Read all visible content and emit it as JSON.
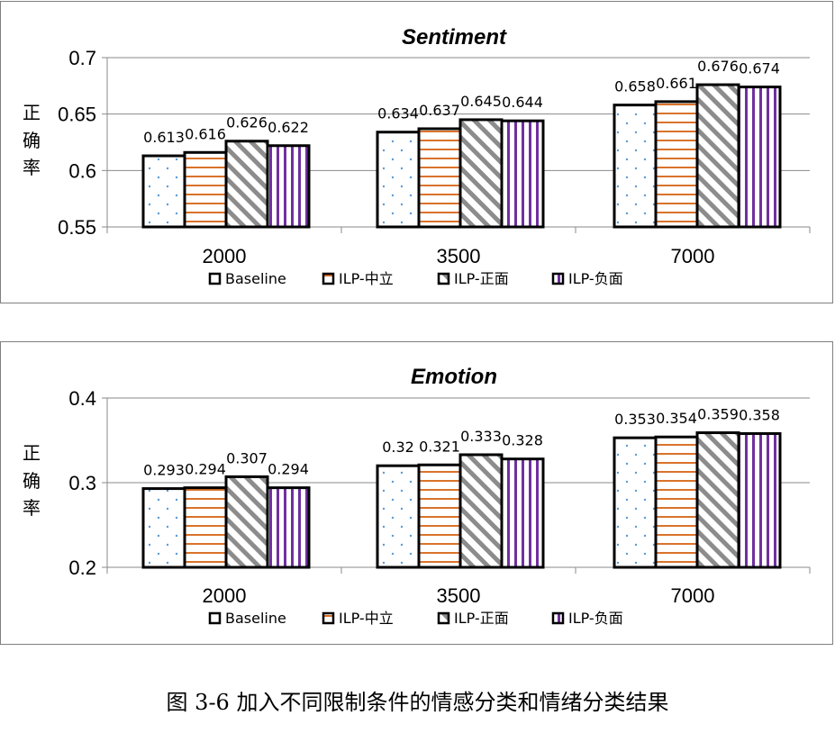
{
  "chart_data": [
    {
      "type": "bar",
      "title": "Sentiment",
      "ylabel": "正确率",
      "categories": [
        "2000",
        "3500",
        "7000"
      ],
      "yticks": [
        "0.7",
        "0.65",
        "0.6",
        "0.55"
      ],
      "ylim": [
        0.55,
        0.7
      ],
      "grid": true,
      "legend_position": "bottom",
      "series": [
        {
          "name": "Baseline",
          "values": [
            0.613,
            0.634,
            0.658
          ],
          "labels": [
            "0.613",
            "0.634",
            "0.658"
          ],
          "pattern": "dots",
          "color": "#5b9bd5"
        },
        {
          "name": "ILP-中立",
          "values": [
            0.616,
            0.637,
            0.661
          ],
          "labels": [
            "0.616",
            "0.637",
            "0.661"
          ],
          "pattern": "hstripes",
          "color": "#d9732b"
        },
        {
          "name": "ILP-正面",
          "values": [
            0.626,
            0.645,
            0.676
          ],
          "labels": [
            "0.626",
            "0.645",
            "0.676"
          ],
          "pattern": "diagonal",
          "color": "#8c8c8c"
        },
        {
          "name": "ILP-负面",
          "values": [
            0.622,
            0.644,
            0.674
          ],
          "labels": [
            "0.622",
            "0.644",
            "0.674"
          ],
          "pattern": "vstripes",
          "color": "#7030a0"
        }
      ]
    },
    {
      "type": "bar",
      "title": "Emotion",
      "ylabel": "正确率",
      "categories": [
        "2000",
        "3500",
        "7000"
      ],
      "yticks": [
        "0.4",
        "0.3",
        "0.2"
      ],
      "ylim": [
        0.2,
        0.4
      ],
      "grid": true,
      "legend_position": "bottom",
      "series": [
        {
          "name": "Baseline",
          "values": [
            0.293,
            0.32,
            0.353
          ],
          "labels": [
            "0.293",
            "0.32",
            "0.353"
          ],
          "pattern": "dots",
          "color": "#5b9bd5"
        },
        {
          "name": "ILP-中立",
          "values": [
            0.294,
            0.321,
            0.354
          ],
          "labels": [
            "0.294",
            "0.321",
            "0.354"
          ],
          "pattern": "hstripes",
          "color": "#d9732b"
        },
        {
          "name": "ILP-正面",
          "values": [
            0.307,
            0.333,
            0.359
          ],
          "labels": [
            "0.307",
            "0.333",
            "0.359"
          ],
          "pattern": "diagonal",
          "color": "#8c8c8c"
        },
        {
          "name": "ILP-负面",
          "values": [
            0.294,
            0.328,
            0.358
          ],
          "labels": [
            "0.294",
            "0.328",
            "0.358"
          ],
          "pattern": "vstripes",
          "color": "#7030a0"
        }
      ]
    }
  ],
  "caption": "图 3-6  加入不同限制条件的情感分类和情绪分类结果"
}
